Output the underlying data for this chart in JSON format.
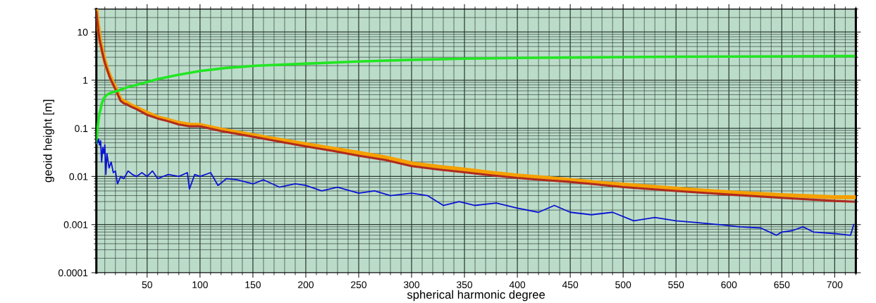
{
  "chart_data": {
    "type": "line",
    "xlabel": "spherical harmonic degree",
    "ylabel": "geoid height [m]",
    "log": "y",
    "grid": true,
    "legend": false,
    "marker": "none",
    "line_style": "solid",
    "xlim": [
      2,
      720
    ],
    "ylim": [
      0.0001,
      30
    ],
    "xticks": [
      50,
      100,
      150,
      200,
      250,
      300,
      350,
      400,
      450,
      500,
      550,
      600,
      650,
      700
    ],
    "yticks": [
      0.0001,
      0.001,
      0.01,
      0.1,
      1,
      10
    ],
    "series": [
      {
        "color": "#f5a000",
        "x": [
          2,
          3,
          4,
          5,
          6,
          8,
          10,
          12,
          15,
          18,
          20,
          22,
          25,
          28,
          30,
          35,
          40,
          50,
          60,
          70,
          80,
          90,
          100,
          120,
          150,
          175,
          200,
          225,
          250,
          275,
          300,
          325,
          350,
          375,
          400,
          425,
          450,
          475,
          500,
          550,
          600,
          650,
          700,
          718
        ],
        "values": [
          30,
          18,
          12,
          8,
          6,
          3.8,
          2.5,
          1.8,
          1.2,
          0.85,
          0.7,
          0.55,
          0.4,
          0.36,
          0.35,
          0.3,
          0.27,
          0.21,
          0.17,
          0.15,
          0.13,
          0.12,
          0.118,
          0.095,
          0.072,
          0.058,
          0.047,
          0.038,
          0.031,
          0.025,
          0.0187,
          0.016,
          0.014,
          0.012,
          0.0105,
          0.0095,
          0.0085,
          0.0075,
          0.0068,
          0.0056,
          0.0047,
          0.0041,
          0.0037,
          0.0037
        ]
      },
      {
        "color": "#b02a1e",
        "x": [
          2,
          3,
          4,
          5,
          6,
          8,
          10,
          12,
          15,
          18,
          20,
          22,
          25,
          28,
          30,
          35,
          40,
          50,
          60,
          70,
          80,
          90,
          100,
          120,
          150,
          175,
          200,
          225,
          250,
          275,
          300,
          325,
          350,
          375,
          400,
          425,
          450,
          475,
          500,
          550,
          600,
          650,
          700,
          718
        ],
        "values": [
          26,
          16,
          10,
          7,
          5.5,
          3.5,
          2.3,
          1.7,
          1.1,
          0.8,
          0.65,
          0.52,
          0.37,
          0.33,
          0.32,
          0.28,
          0.25,
          0.19,
          0.16,
          0.14,
          0.12,
          0.11,
          0.11,
          0.088,
          0.067,
          0.053,
          0.042,
          0.034,
          0.027,
          0.022,
          0.0164,
          0.014,
          0.0122,
          0.0106,
          0.0093,
          0.0084,
          0.0077,
          0.0068,
          0.006,
          0.005,
          0.0042,
          0.0036,
          0.0031,
          0.003
        ]
      },
      {
        "color": "#22e622",
        "x": [
          2,
          3,
          4,
          5,
          7,
          9,
          12,
          16,
          22,
          30,
          40,
          60,
          80,
          100,
          125,
          153,
          200,
          250,
          300,
          350,
          400,
          450,
          500,
          550,
          600,
          650,
          700,
          718
        ],
        "values": [
          0.05,
          0.09,
          0.15,
          0.2,
          0.32,
          0.42,
          0.5,
          0.55,
          0.6,
          0.7,
          0.8,
          1.05,
          1.3,
          1.55,
          1.8,
          2.0,
          2.2,
          2.45,
          2.65,
          2.8,
          2.9,
          2.96,
          3.02,
          3.07,
          3.1,
          3.13,
          3.16,
          3.16
        ]
      },
      {
        "color": "#0a14d2",
        "x": [
          3,
          4,
          5,
          6,
          7,
          8,
          9,
          10,
          11,
          12,
          14,
          16,
          18,
          20,
          22,
          25,
          28,
          32,
          36,
          40,
          45,
          50,
          55,
          60,
          70,
          80,
          88,
          90,
          95,
          100,
          110,
          117,
          125,
          135,
          150,
          160,
          175,
          190,
          200,
          215,
          230,
          250,
          265,
          280,
          300,
          315,
          330,
          345,
          360,
          380,
          400,
          420,
          435,
          450,
          470,
          490,
          510,
          530,
          550,
          570,
          590,
          610,
          630,
          645,
          650,
          660,
          670,
          680,
          700,
          715,
          718
        ],
        "values": [
          0.05,
          0.06,
          0.045,
          0.055,
          0.02,
          0.04,
          0.03,
          0.045,
          0.011,
          0.03,
          0.015,
          0.02,
          0.012,
          0.013,
          0.007,
          0.01,
          0.009,
          0.013,
          0.011,
          0.01,
          0.012,
          0.01,
          0.013,
          0.009,
          0.011,
          0.01,
          0.012,
          0.0055,
          0.011,
          0.01,
          0.012,
          0.0065,
          0.009,
          0.0085,
          0.007,
          0.0085,
          0.006,
          0.007,
          0.0065,
          0.005,
          0.006,
          0.0045,
          0.005,
          0.004,
          0.0045,
          0.004,
          0.0025,
          0.003,
          0.0025,
          0.0028,
          0.0022,
          0.0018,
          0.0025,
          0.0018,
          0.0016,
          0.0018,
          0.0012,
          0.0014,
          0.0012,
          0.0011,
          0.001,
          0.0009,
          0.00085,
          0.0006,
          0.0007,
          0.00075,
          0.0009,
          0.0007,
          0.00065,
          0.0006,
          0.001
        ]
      }
    ]
  }
}
